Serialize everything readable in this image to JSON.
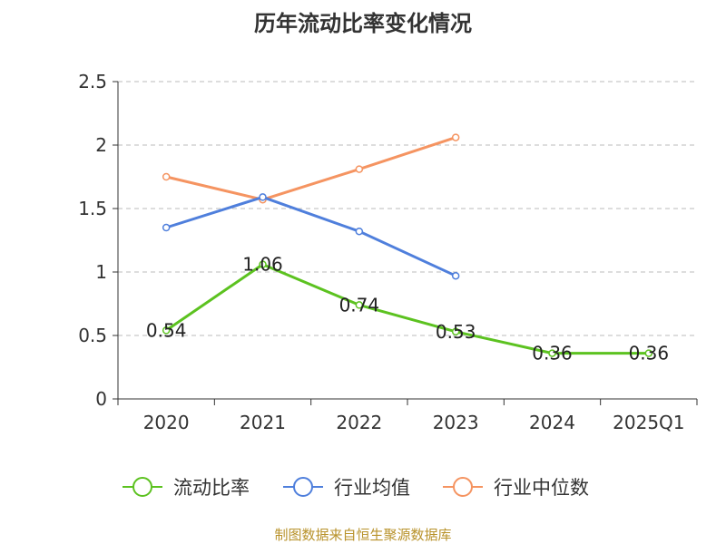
{
  "chart_data": {
    "type": "line",
    "title": "历年流动比率变化情况",
    "categories": [
      "2020",
      "2021",
      "2022",
      "2023",
      "2024",
      "2025Q1"
    ],
    "ylim": [
      0,
      2.5
    ],
    "yticks": [
      0,
      0.5,
      1,
      1.5,
      2,
      2.5
    ],
    "ytick_labels": [
      "0",
      "0.5",
      "1",
      "1.5",
      "2",
      "2.5"
    ],
    "grid": true,
    "legend_position": "bottom",
    "series": [
      {
        "name": "流动比率",
        "color": "#5cc220",
        "values": [
          0.54,
          1.06,
          0.74,
          0.53,
          0.36,
          0.36
        ],
        "labels": [
          "0.54",
          "1.06",
          "0.74",
          "0.53",
          "0.36",
          "0.36"
        ]
      },
      {
        "name": "行业均值",
        "color": "#4f7fdc",
        "values": [
          1.35,
          1.59,
          1.32,
          0.97,
          null,
          null
        ]
      },
      {
        "name": "行业中位数",
        "color": "#f59461",
        "values": [
          1.75,
          1.57,
          1.81,
          2.06,
          null,
          null
        ]
      }
    ]
  },
  "footer": {
    "source": "制图数据来自恒生聚源数据库"
  }
}
